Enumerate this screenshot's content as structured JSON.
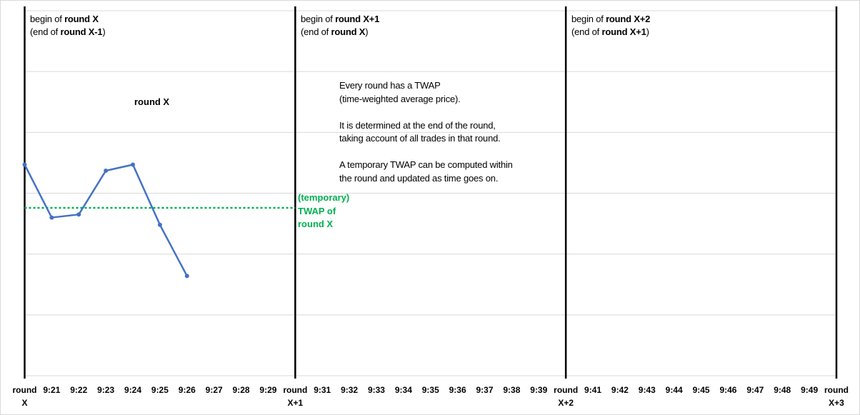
{
  "chart_data": {
    "type": "line",
    "x_ticks": [
      "round X",
      "9:21",
      "9:22",
      "9:23",
      "9:24",
      "9:25",
      "9:26",
      "9:27",
      "9:28",
      "9:29",
      "round X+1",
      "9:31",
      "9:32",
      "9:33",
      "9:34",
      "9:35",
      "9:36",
      "9:37",
      "9:38",
      "9:39",
      "round X+2",
      "9:41",
      "9:42",
      "9:43",
      "9:44",
      "9:45",
      "9:46",
      "9:47",
      "9:48",
      "9:49",
      "round X+3"
    ],
    "ylim": [
      0,
      6
    ],
    "grid": "horizontal",
    "series": [
      {
        "values": [
          3.47,
          2.6,
          2.65,
          3.37,
          3.47,
          2.48,
          1.64
        ],
        "color": "#4472c4"
      }
    ],
    "twap": {
      "value": 2.76,
      "color": "#00b050",
      "x_start": 0,
      "x_end": 10
    },
    "round_boundaries": [
      0,
      10,
      20,
      30
    ]
  },
  "annotations": {
    "boundary_0": {
      "pre": "begin of ",
      "bold": "round X",
      "sub_pre": "(end of ",
      "sub_bold": "round X-1",
      "sub_post": ")"
    },
    "boundary_1": {
      "pre": "begin of ",
      "bold": "round X+1",
      "sub_pre": "(end of ",
      "sub_bold": "round X",
      "sub_post": ")"
    },
    "boundary_2": {
      "pre": "begin of ",
      "bold": "round X+2",
      "sub_pre": "(end of ",
      "sub_bold": "round X+1",
      "sub_post": ")"
    },
    "round_title": "round X",
    "explain_1a": "Every round has a TWAP",
    "explain_1b": "(time-weighted average price).",
    "explain_2a": "It is determined at the end of the round,",
    "explain_2b": "taking account of all trades in that round.",
    "explain_3a": "A temporary TWAP can be computed within",
    "explain_3b": "the round and updated as time goes on.",
    "twap_line1": "(temporary)",
    "twap_line2": "TWAP of",
    "twap_line3": "round X"
  }
}
